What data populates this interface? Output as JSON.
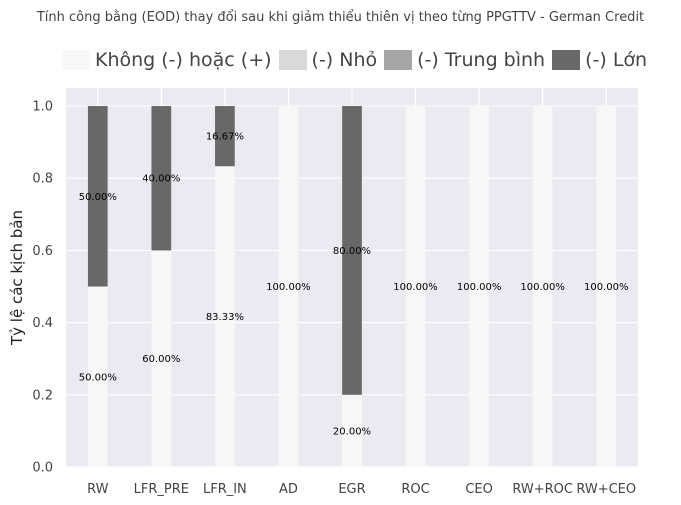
{
  "chart_data": {
    "type": "bar",
    "stacked": true,
    "title": "Tính công bằng (EOD) thay đổi sau khi giảm thiểu thiên vị theo từng PPGTTV - German Credit",
    "ylabel": "Tỷ lệ các kịch bản",
    "xlabel": "",
    "ylim": [
      0,
      1.05
    ],
    "yticks": [
      "0.0",
      "0.2",
      "0.4",
      "0.6",
      "0.8",
      "1.0"
    ],
    "grid": true,
    "legend_position": "top",
    "categories": [
      "RW",
      "LFR_PRE",
      "LFR_IN",
      "AD",
      "EGR",
      "ROC",
      "CEO",
      "RW+ROC",
      "RW+CEO"
    ],
    "series": [
      {
        "name": "Không (-) hoặc (+)",
        "color": "#f7f7f7",
        "values": [
          0.5,
          0.6,
          0.8333,
          1.0,
          0.2,
          1.0,
          1.0,
          1.0,
          1.0
        ],
        "labels": [
          "50.00%",
          "60.00%",
          "83.33%",
          "100.00%",
          "20.00%",
          "100.00%",
          "100.00%",
          "100.00%",
          "100.00%"
        ]
      },
      {
        "name": "(-) Nhỏ",
        "color": "#d9d9d9",
        "values": [
          0,
          0,
          0,
          0,
          0,
          0,
          0,
          0,
          0
        ],
        "labels": [
          "",
          "",
          "",
          "",
          "",
          "",
          "",
          "",
          ""
        ]
      },
      {
        "name": "(-) Trung bình",
        "color": "#a6a6a6",
        "values": [
          0,
          0,
          0,
          0,
          0,
          0,
          0,
          0,
          0
        ],
        "labels": [
          "",
          "",
          "",
          "",
          "",
          "",
          "",
          "",
          ""
        ]
      },
      {
        "name": "(-) Lớn",
        "color": "#686868",
        "values": [
          0.5,
          0.4,
          0.1667,
          0,
          0.8,
          0,
          0,
          0,
          0
        ],
        "labels": [
          "50.00%",
          "40.00%",
          "16.67%",
          "",
          "80.00%",
          "",
          "",
          "",
          ""
        ]
      }
    ]
  },
  "colors": {
    "plot_background": "#eaeaf2",
    "grid": "#ffffff",
    "text": "#444444"
  }
}
